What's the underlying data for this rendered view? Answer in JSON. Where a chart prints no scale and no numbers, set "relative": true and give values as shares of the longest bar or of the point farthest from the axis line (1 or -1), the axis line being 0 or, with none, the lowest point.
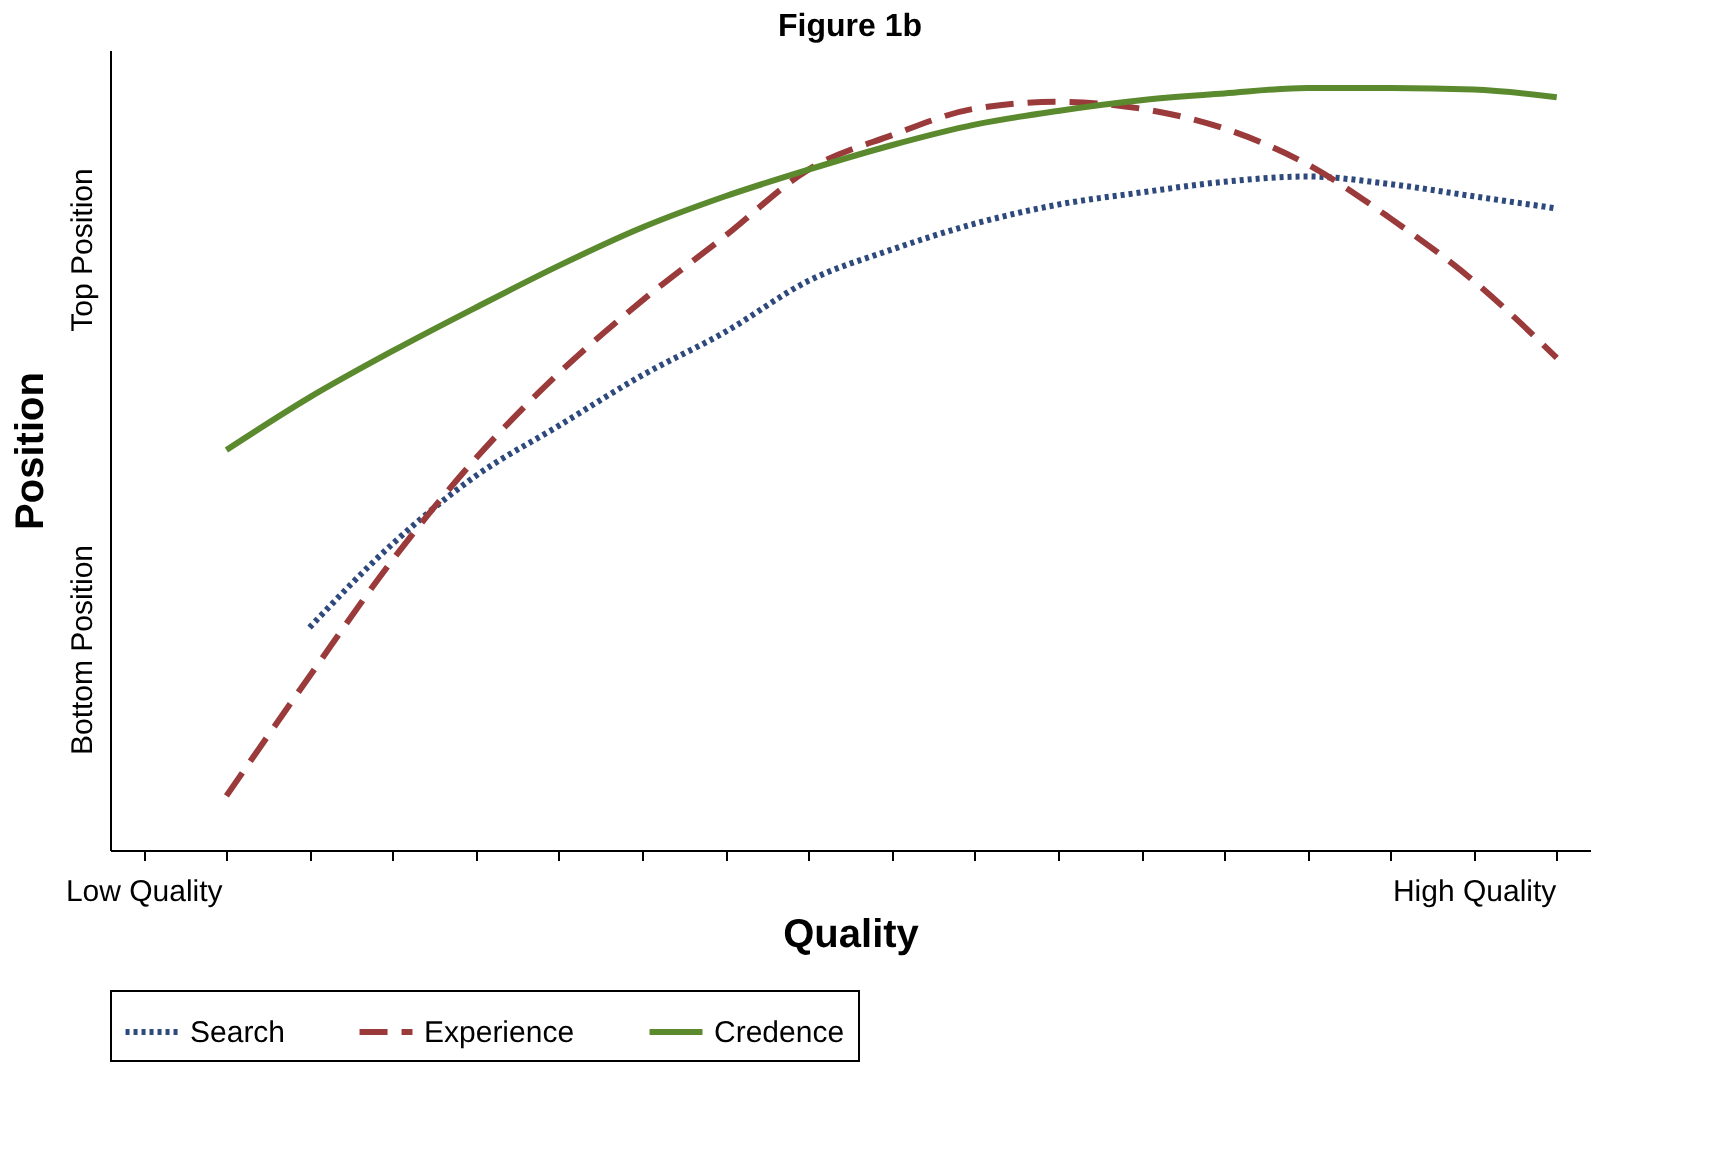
{
  "chart_data": {
    "type": "line",
    "title": "Figure 1b",
    "xlabel": "Quality",
    "ylabel": "Position",
    "relative": true,
    "annotations": [
      "Bottom Position",
      "Top Position"
    ],
    "categories": [
      "Low Quality",
      null,
      null,
      null,
      null,
      null,
      null,
      null,
      null,
      null,
      null,
      null,
      null,
      null,
      null,
      null,
      "High Quality",
      null
    ],
    "grid": false,
    "legend": "bottom",
    "marker": "none",
    "series": [
      {
        "name": "Search",
        "color": "#2e4a7d",
        "line_style": "dotted",
        "values": [
          null,
          null,
          0.292,
          0.402,
          0.491,
          0.557,
          0.623,
          0.68,
          0.747,
          0.788,
          0.822,
          0.847,
          0.863,
          0.877,
          0.884,
          0.874,
          0.858,
          0.842
        ]
      },
      {
        "name": "Experience",
        "color": "#9b3a3a",
        "line_style": "dashed",
        "values": [
          null,
          0.071,
          0.228,
          0.381,
          0.514,
          0.626,
          0.721,
          0.806,
          0.893,
          0.938,
          0.973,
          0.982,
          0.973,
          0.947,
          0.9,
          0.829,
          0.747,
          0.646
        ]
      },
      {
        "name": "Credence",
        "color": "#5b8a2e",
        "line_style": "solid",
        "values": [
          null,
          0.525,
          0.594,
          0.655,
          0.712,
          0.767,
          0.817,
          0.858,
          0.893,
          0.925,
          0.952,
          0.97,
          0.984,
          0.993,
          1,
          1,
          0.998,
          0.988
        ]
      }
    ]
  }
}
